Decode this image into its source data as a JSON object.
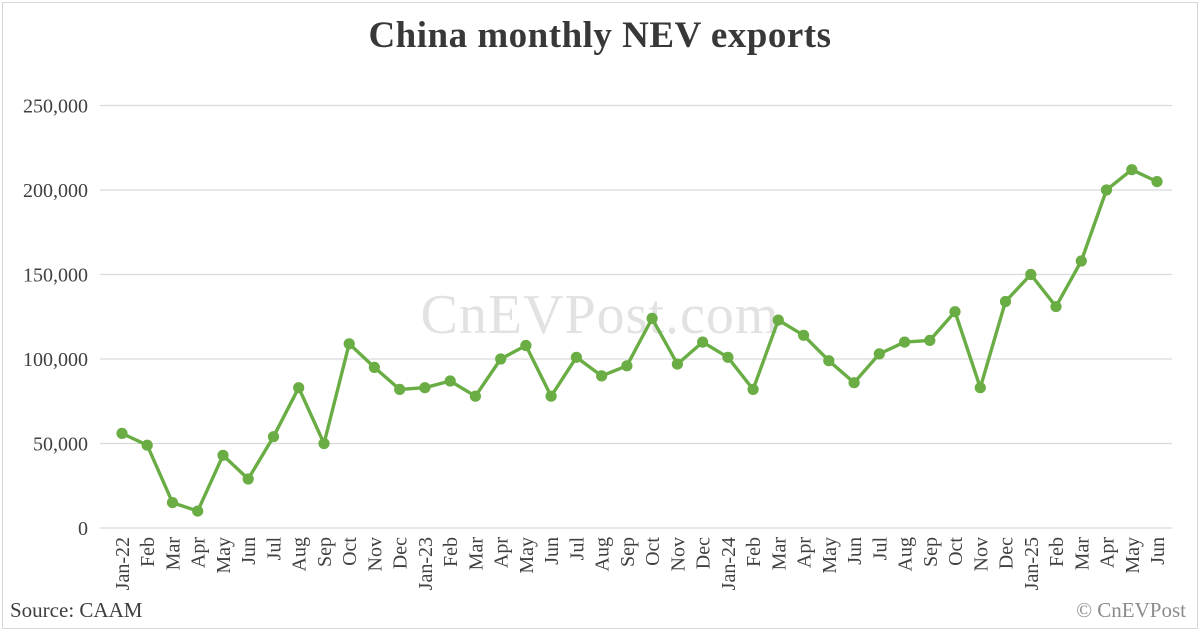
{
  "title": "China monthly NEV exports",
  "watermark": "CnEVPost.com",
  "footer": {
    "source": "Source: CAAM",
    "copyright": "© CnEVPost"
  },
  "colors": {
    "line": "#69ad44",
    "marker": "#69ad44",
    "grid": "#d9d9d9",
    "axis_text": "#404040",
    "title_text": "#383838",
    "watermark_text": "#e2e2e2"
  },
  "chart_data": {
    "type": "line",
    "title": "China monthly NEV exports",
    "xlabel": "",
    "ylabel": "",
    "ylim": [
      0,
      250000
    ],
    "yticks": [
      0,
      50000,
      100000,
      150000,
      200000,
      250000
    ],
    "ytick_labels": [
      "0",
      "50,000",
      "100,000",
      "150,000",
      "200,000",
      "250,000"
    ],
    "grid": "horizontal-only",
    "legend": "none",
    "categories": [
      "Jan-22",
      "Feb",
      "Mar",
      "Apr",
      "May",
      "Jun",
      "Jul",
      "Aug",
      "Sep",
      "Oct",
      "Nov",
      "Dec",
      "Jan-23",
      "Feb",
      "Mar",
      "Apr",
      "May",
      "Jun",
      "Jul",
      "Aug",
      "Sep",
      "Oct",
      "Nov",
      "Dec",
      "Jan-24",
      "Feb",
      "Mar",
      "Apr",
      "May",
      "Jun",
      "Jul",
      "Aug",
      "Sep",
      "Oct",
      "Nov",
      "Dec",
      "Jan-25",
      "Feb",
      "Mar",
      "Apr",
      "May",
      "Jun"
    ],
    "series": [
      {
        "name": "China monthly NEV exports (units)",
        "values": [
          56000,
          49000,
          15000,
          10000,
          43000,
          29000,
          54000,
          83000,
          50000,
          109000,
          95000,
          82000,
          83000,
          87000,
          78000,
          100000,
          108000,
          78000,
          101000,
          90000,
          96000,
          124000,
          97000,
          110000,
          101000,
          82000,
          123000,
          114000,
          99000,
          86000,
          103000,
          110000,
          111000,
          128000,
          83000,
          134000,
          150000,
          131000,
          158000,
          200000,
          212000,
          205000
        ]
      }
    ]
  }
}
